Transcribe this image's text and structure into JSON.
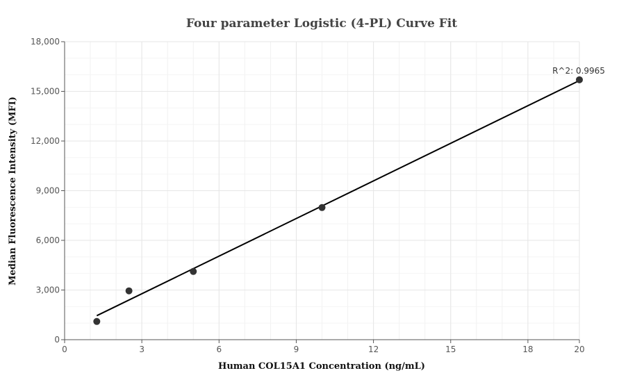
{
  "chart_data": {
    "type": "scatter",
    "title": "Four parameter Logistic (4-PL) Curve Fit",
    "xlabel": "Human COL15A1 Concentration (ng/mL)",
    "ylabel": "Median Fluorescence Intensity (MFI)",
    "xlim": [
      0,
      20
    ],
    "ylim": [
      0,
      18000
    ],
    "x_ticks": [
      0,
      3,
      6,
      9,
      12,
      15,
      18,
      20
    ],
    "x_tick_labels": [
      "0",
      "3",
      "6",
      "9",
      "12",
      "15",
      "18",
      "20"
    ],
    "y_ticks": [
      0,
      3000,
      6000,
      9000,
      12000,
      15000,
      18000
    ],
    "y_tick_labels": [
      "0",
      "3,000",
      "6,000",
      "9,000",
      "12,000",
      "15,000",
      "18,000"
    ],
    "grid": true,
    "points": {
      "x": [
        1.25,
        2.5,
        5,
        10,
        20
      ],
      "y": [
        1100,
        2950,
        4120,
        7980,
        15700
      ]
    },
    "fit_line": {
      "x": [
        1.25,
        20
      ],
      "y": [
        1450,
        15650
      ]
    },
    "annotation": {
      "text": "R^2: 0.9965",
      "x": 20,
      "y": 15700
    },
    "colors": {
      "points": "#333333",
      "line": "#000000",
      "grid": "#e6e6e6",
      "axis": "#555555"
    }
  }
}
